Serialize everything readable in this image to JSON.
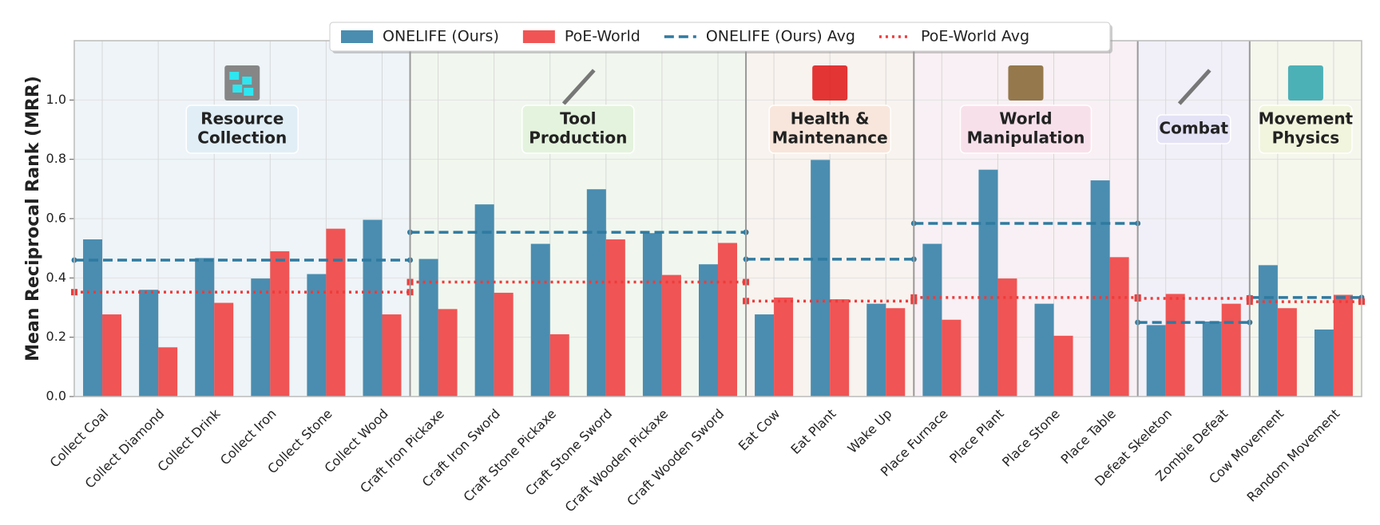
{
  "chart_data": {
    "type": "bar",
    "ylabel": "Mean Reciprocal Rank (MRR)",
    "ylim": [
      0,
      1.2
    ],
    "yticks": [
      {
        "value": 0,
        "label": "0.0"
      },
      0.2,
      0.4,
      0.6,
      0.8,
      {
        "value": 1,
        "label": "1.0"
      }
    ],
    "grid": true,
    "legend": "top",
    "groups": [
      {
        "label": [
          "Resource",
          "Collection"
        ],
        "color": "#eef4f8",
        "box_color": "#e1eef6",
        "categories": [
          "Collect Coal",
          "Collect Diamond",
          "Collect Drink",
          "Collect Iron",
          "Collect Stone",
          "Collect Wood"
        ]
      },
      {
        "label": [
          "Tool",
          "Production"
        ],
        "color": "#f1f7ee",
        "box_color": "#e4f3dd",
        "categories": [
          "Craft Iron Pickaxe",
          "Craft Iron Sword",
          "Craft Stone Pickaxe",
          "Craft Stone Sword",
          "Craft Wooden Pickaxe",
          "Craft Wooden Sword"
        ]
      },
      {
        "label": [
          "Health &",
          "Maintenance"
        ],
        "color": "#f8f3ee",
        "box_color": "#f8e6dc",
        "categories": [
          "Eat Cow",
          "Eat Plant",
          "Wake Up"
        ]
      },
      {
        "label": [
          "World",
          "Manipulation"
        ],
        "color": "#f8f0f4",
        "box_color": "#f8e0ea",
        "categories": [
          "Place Furnace",
          "Place Plant",
          "Place Stone",
          "Place Table"
        ]
      },
      {
        "label": [
          "Combat"
        ],
        "color": "#f1f0f8",
        "box_color": "#e4e2f5",
        "categories": [
          "Defeat Skeleton",
          "Zombie Defeat"
        ]
      },
      {
        "label": [
          "Movement",
          "Physics"
        ],
        "color": "#f5f7ed",
        "box_color": "#f1f5dd",
        "categories": [
          "Cow Movement",
          "Random Movement"
        ]
      }
    ],
    "series": [
      {
        "name": "ONELIFE (Ours)",
        "color": "#4a8db0",
        "values": [
          0.53,
          0.36,
          0.467,
          0.398,
          0.413,
          0.596,
          0.464,
          0.648,
          0.515,
          0.699,
          0.551,
          0.446,
          0.277,
          0.798,
          0.313,
          0.515,
          0.765,
          0.313,
          0.729,
          0.241,
          0.253,
          0.443,
          0.226
        ]
      },
      {
        "name": "PoE-World",
        "color": "#f05454",
        "values": [
          0.277,
          0.166,
          0.316,
          0.49,
          0.566,
          0.277,
          0.295,
          0.35,
          0.21,
          0.53,
          0.41,
          0.518,
          0.334,
          0.328,
          0.298,
          0.259,
          0.398,
          0.205,
          0.47,
          0.346,
          0.313,
          0.298,
          0.343
        ]
      },
      {
        "name": "ONELIFE (Ours) Avg",
        "color": "#2f7aa0",
        "line_style": "dashed",
        "values": [
          0.46,
          0.554,
          0.463,
          0.584,
          0.25,
          0.334
        ]
      },
      {
        "name": "PoE-World Avg",
        "color": "#ee3b3b",
        "line_style": "dotted",
        "values": [
          0.352,
          0.386,
          0.322,
          0.334,
          0.331,
          0.32
        ]
      }
    ]
  }
}
